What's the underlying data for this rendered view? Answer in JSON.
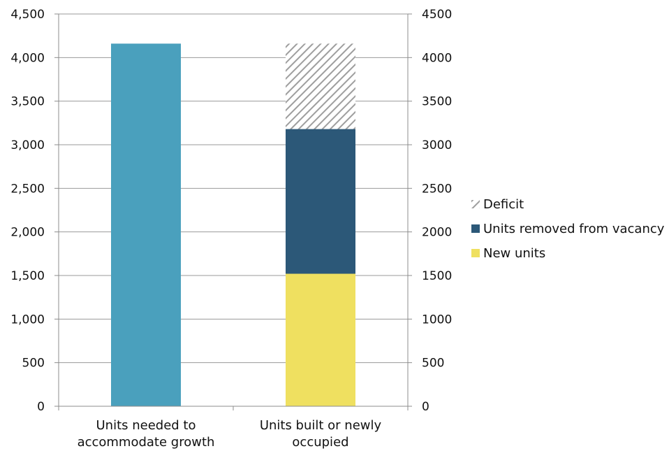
{
  "chart_data": {
    "type": "bar",
    "stacked": true,
    "categories": [
      [
        "Units needed to",
        "accommodate growth"
      ],
      [
        "Units built or newly",
        "occupied"
      ]
    ],
    "series": [
      {
        "name": "Units needed to accommodate growth",
        "values": [
          4160,
          null
        ],
        "color": "#4aa0bd",
        "pattern": "solid",
        "show_in_legend": false
      },
      {
        "name": "New units",
        "values": [
          null,
          1520
        ],
        "color": "#efe060",
        "pattern": "solid",
        "show_in_legend": true
      },
      {
        "name": "Units removed from vacancy",
        "values": [
          null,
          1660
        ],
        "color": "#2c5878",
        "pattern": "solid",
        "show_in_legend": true
      },
      {
        "name": "Deficit",
        "values": [
          null,
          980
        ],
        "color": "#9e9e9e",
        "pattern": "hatch",
        "show_in_legend": true
      }
    ],
    "legend_order": [
      "Deficit",
      "Units removed from vacancy",
      "New units"
    ],
    "legend_position": "right",
    "y_left": {
      "min": 0,
      "max": 4500,
      "step": 500,
      "tick_labels": [
        "0",
        "500",
        "1,000",
        "1,500",
        "2,000",
        "2,500",
        "3,000",
        "3,500",
        "4,000",
        "4,500"
      ]
    },
    "y_right": {
      "min": 0,
      "max": 4500,
      "step": 500,
      "tick_labels": [
        "0",
        "500",
        "1000",
        "1500",
        "2000",
        "2500",
        "3000",
        "3500",
        "4000",
        "4500"
      ]
    },
    "grid": true,
    "title": "",
    "xlabel": "",
    "ylabel": ""
  }
}
